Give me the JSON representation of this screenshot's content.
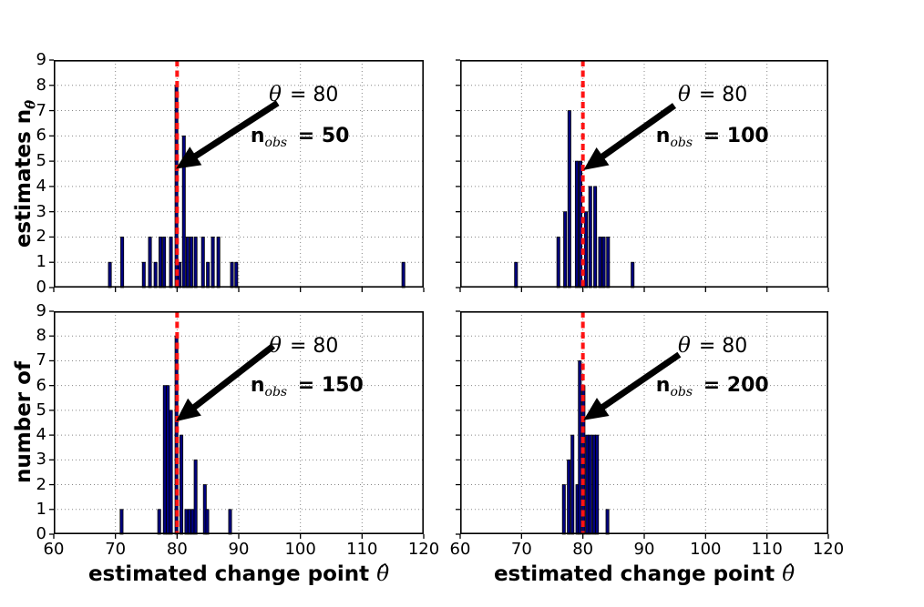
{
  "figure": {
    "background": "#ffffff",
    "colors": {
      "bar_fill": "#000080",
      "bar_edge": "#000000",
      "vline": "#ff1414",
      "grid": "#888888",
      "arrow": "#000000",
      "text": "#000000"
    },
    "x_range": [
      60,
      120
    ],
    "y_range": [
      0,
      9
    ],
    "x_ticks": [
      60,
      70,
      80,
      90,
      100,
      110,
      120
    ],
    "y_ticks": [
      0,
      1,
      2,
      3,
      4,
      5,
      6,
      7,
      8,
      9
    ],
    "x_axis_label": "estimated change point",
    "x_axis_label_math": "θ̂",
    "y_axis_label_top": "estimates n",
    "y_axis_label_top_sub": "θ̂",
    "y_axis_label_bottom": "number of",
    "grid": "dotted",
    "theta_line_x": 80
  },
  "chart_data": [
    {
      "type": "bar",
      "panel": "top-left",
      "n_obs": 50,
      "xlim": [
        60,
        120
      ],
      "ylim": [
        0,
        9
      ],
      "vline_x": 80,
      "annotation": {
        "theta_sym": "θ",
        "theta_eq": " = 80",
        "nobs_n": "n",
        "nobs_sub": "obs",
        "nobs_value": " = 50"
      },
      "annotation_pos": {
        "theta": [
          94.9,
          8.1
        ],
        "nobs": [
          91.9,
          6.45
        ]
      },
      "arrow": {
        "from": [
          96.3,
          7.3
        ],
        "to": [
          79.8,
          4.7
        ]
      },
      "bars": [
        [
          69.1,
          1
        ],
        [
          71.1,
          2
        ],
        [
          74.6,
          1
        ],
        [
          75.6,
          2
        ],
        [
          76.5,
          1
        ],
        [
          77.3,
          2
        ],
        [
          77.9,
          2
        ],
        [
          79.0,
          2
        ],
        [
          79.9,
          8
        ],
        [
          80.4,
          1
        ],
        [
          81.1,
          6
        ],
        [
          81.7,
          2
        ],
        [
          82.3,
          2
        ],
        [
          83.0,
          2
        ],
        [
          84.2,
          2
        ],
        [
          85.0,
          1
        ],
        [
          85.8,
          2
        ],
        [
          86.7,
          2
        ],
        [
          88.9,
          1
        ],
        [
          89.6,
          1
        ],
        [
          116.7,
          1
        ]
      ]
    },
    {
      "type": "bar",
      "panel": "top-right",
      "n_obs": 100,
      "xlim": [
        60,
        120
      ],
      "ylim": [
        0,
        9
      ],
      "vline_x": 80,
      "annotation": {
        "theta_sym": "θ",
        "theta_eq": " = 80",
        "nobs_n": "n",
        "nobs_sub": "obs",
        "nobs_value": " = 100"
      },
      "annotation_pos": {
        "theta": [
          95.5,
          8.1
        ],
        "nobs": [
          91.9,
          6.45
        ]
      },
      "arrow": {
        "from": [
          94.9,
          7.2
        ],
        "to": [
          80.1,
          4.65
        ]
      },
      "bars": [
        [
          69.1,
          1
        ],
        [
          76.0,
          2
        ],
        [
          77.1,
          3
        ],
        [
          77.8,
          7
        ],
        [
          79.0,
          5
        ],
        [
          79.6,
          5
        ],
        [
          80.5,
          3
        ],
        [
          81.2,
          4
        ],
        [
          82.0,
          4
        ],
        [
          82.8,
          2
        ],
        [
          83.4,
          2
        ],
        [
          84.1,
          2
        ],
        [
          88.1,
          1
        ]
      ]
    },
    {
      "type": "bar",
      "panel": "bottom-left",
      "n_obs": 150,
      "xlim": [
        60,
        120
      ],
      "ylim": [
        0,
        9
      ],
      "vline_x": 80,
      "annotation": {
        "theta_sym": "θ",
        "theta_eq": " = 80",
        "nobs_n": "n",
        "nobs_sub": "obs",
        "nobs_value": " = 150"
      },
      "annotation_pos": {
        "theta": [
          94.9,
          8.1
        ],
        "nobs": [
          91.9,
          6.45
        ]
      },
      "arrow": {
        "from": [
          95.6,
          7.6
        ],
        "to": [
          79.8,
          4.55
        ]
      },
      "bars": [
        [
          71.0,
          1
        ],
        [
          77.1,
          1
        ],
        [
          78.0,
          6
        ],
        [
          78.5,
          6
        ],
        [
          79.0,
          5
        ],
        [
          79.9,
          8
        ],
        [
          80.7,
          4
        ],
        [
          81.5,
          1
        ],
        [
          82.0,
          1
        ],
        [
          82.5,
          1
        ],
        [
          83.0,
          3
        ],
        [
          84.5,
          2
        ],
        [
          84.9,
          1
        ],
        [
          88.6,
          1
        ]
      ]
    },
    {
      "type": "bar",
      "panel": "bottom-right",
      "n_obs": 200,
      "xlim": [
        60,
        120
      ],
      "ylim": [
        0,
        9
      ],
      "vline_x": 80,
      "annotation": {
        "theta_sym": "θ",
        "theta_eq": " = 80",
        "nobs_n": "n",
        "nobs_sub": "obs",
        "nobs_value": " = 200"
      },
      "annotation_pos": {
        "theta": [
          95.5,
          8.1
        ],
        "nobs": [
          91.9,
          6.45
        ]
      },
      "arrow": {
        "from": [
          95.7,
          7.25
        ],
        "to": [
          80.1,
          4.6
        ]
      },
      "bars": [
        [
          76.9,
          2
        ],
        [
          77.7,
          3
        ],
        [
          78.3,
          4
        ],
        [
          79.1,
          2
        ],
        [
          79.5,
          7
        ],
        [
          80.1,
          6
        ],
        [
          80.7,
          4
        ],
        [
          81.2,
          4
        ],
        [
          81.8,
          4
        ],
        [
          82.3,
          4
        ],
        [
          84.0,
          1
        ]
      ]
    }
  ]
}
